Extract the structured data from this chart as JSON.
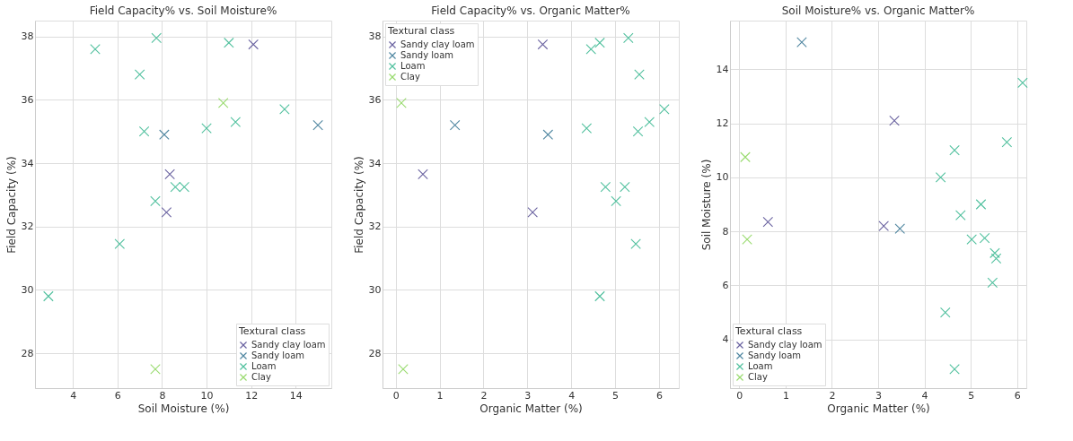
{
  "chart_data": [
    {
      "type": "scatter",
      "title": "Field Capacity% vs. Soil Moisture%",
      "xlabel": "Soil Moisture (%)",
      "ylabel": "Field Capacity (%)",
      "legend_title": "Textural class",
      "legend": "bottom right",
      "grid": true,
      "marker": "cross",
      "xlim": [
        2.3,
        15.6
      ],
      "xticks": [
        4,
        6,
        8,
        10,
        12,
        14
      ],
      "ylim": [
        26.9,
        38.5
      ],
      "yticks": [
        28,
        30,
        32,
        34,
        36,
        38
      ],
      "series": [
        {
          "name": "Sandy clay loam",
          "color": "#5b5397",
          "x": [
            12.1,
            8.35,
            8.2
          ],
          "values": [
            37.75,
            33.65,
            32.45
          ]
        },
        {
          "name": "Sandy loam",
          "color": "#3f7b98",
          "x": [
            8.1,
            15.0
          ],
          "values": [
            34.9,
            35.2
          ]
        },
        {
          "name": "Loam",
          "color": "#3fba94",
          "x": [
            5.0,
            7.75,
            7.0,
            11.0,
            13.5,
            11.3,
            10.0,
            7.2,
            8.6,
            9.0,
            7.7,
            6.1,
            2.9
          ],
          "values": [
            37.6,
            37.95,
            36.8,
            37.8,
            35.7,
            35.3,
            35.1,
            35.0,
            33.25,
            33.25,
            32.8,
            31.45,
            29.8
          ]
        },
        {
          "name": "Clay",
          "color": "#8fd760",
          "x": [
            10.75,
            7.7
          ],
          "values": [
            35.9,
            27.5
          ]
        }
      ]
    },
    {
      "type": "scatter",
      "title": "Field Capacity% vs. Organic Matter%",
      "xlabel": "Organic Matter (%)",
      "ylabel": "Field Capacity (%)",
      "legend_title": "Textural class",
      "legend": "top left",
      "grid": true,
      "marker": "cross",
      "xlim": [
        -0.3,
        6.45
      ],
      "xticks": [
        0,
        1,
        2,
        3,
        4,
        5,
        6
      ],
      "ylim": [
        26.9,
        38.5
      ],
      "yticks": [
        28,
        30,
        32,
        34,
        36,
        38
      ],
      "series": [
        {
          "name": "Sandy clay loam",
          "color": "#5b5397",
          "x": [
            3.35,
            0.62,
            3.12
          ],
          "values": [
            37.75,
            33.65,
            32.45
          ]
        },
        {
          "name": "Sandy loam",
          "color": "#3f7b98",
          "x": [
            3.47,
            1.35
          ],
          "values": [
            34.9,
            35.2
          ]
        },
        {
          "name": "Loam",
          "color": "#3fba94",
          "x": [
            4.45,
            5.3,
            5.55,
            4.65,
            6.12,
            5.78,
            4.35,
            5.52,
            4.78,
            5.22,
            5.02,
            5.47,
            4.65
          ],
          "values": [
            37.6,
            37.95,
            36.8,
            37.8,
            35.7,
            35.3,
            35.1,
            35.0,
            33.25,
            33.25,
            32.8,
            31.45,
            29.8
          ]
        },
        {
          "name": "Clay",
          "color": "#8fd760",
          "x": [
            0.13,
            0.17
          ],
          "values": [
            35.9,
            27.5
          ]
        }
      ]
    },
    {
      "type": "scatter",
      "title": "Soil Moisture% vs. Organic Matter%",
      "xlabel": "Organic Matter (%)",
      "ylabel": "Soil Moisture (%)",
      "legend_title": "Textural class",
      "legend": "bottom left",
      "grid": true,
      "marker": "cross",
      "xlim": [
        -0.2,
        6.2
      ],
      "xticks": [
        0,
        1,
        2,
        3,
        4,
        5,
        6
      ],
      "ylim": [
        2.2,
        15.8
      ],
      "yticks": [
        4,
        6,
        8,
        10,
        12,
        14
      ],
      "series": [
        {
          "name": "Sandy clay loam",
          "color": "#5b5397",
          "x": [
            3.35,
            0.62,
            3.12
          ],
          "values": [
            12.1,
            8.35,
            8.2
          ]
        },
        {
          "name": "Sandy loam",
          "color": "#3f7b98",
          "x": [
            3.47,
            1.35
          ],
          "values": [
            8.1,
            15.0
          ]
        },
        {
          "name": "Loam",
          "color": "#3fba94",
          "x": [
            4.45,
            5.3,
            5.55,
            4.65,
            6.12,
            5.78,
            4.35,
            5.52,
            4.78,
            5.22,
            5.02,
            5.47,
            4.65
          ],
          "values": [
            5.0,
            7.75,
            7.0,
            11.0,
            13.5,
            11.3,
            10.0,
            7.2,
            8.6,
            9.0,
            7.7,
            6.1,
            2.9
          ]
        },
        {
          "name": "Clay",
          "color": "#8fd760",
          "x": [
            0.13,
            0.17
          ],
          "values": [
            10.75,
            7.7
          ]
        }
      ]
    }
  ]
}
